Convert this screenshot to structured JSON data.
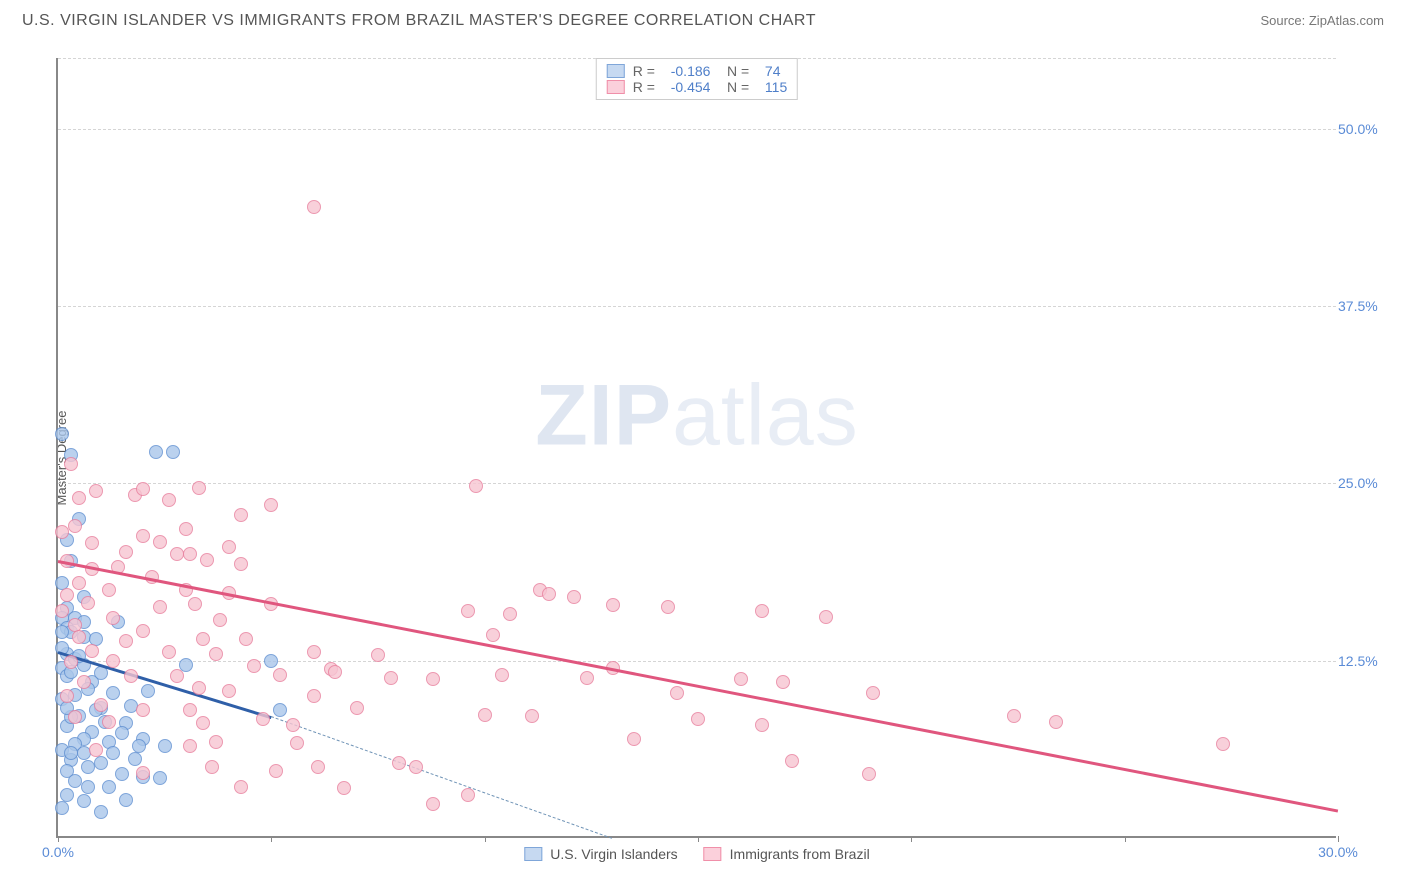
{
  "header": {
    "title": "U.S. VIRGIN ISLANDER VS IMMIGRANTS FROM BRAZIL MASTER'S DEGREE CORRELATION CHART",
    "source": "Source: ZipAtlas.com"
  },
  "watermark": {
    "prefix": "ZIP",
    "suffix": "atlas"
  },
  "chart": {
    "type": "scatter",
    "ylabel": "Master's Degree",
    "xlim": [
      0,
      30
    ],
    "ylim": [
      0,
      55
    ],
    "xtick_step": 5,
    "xtick_label_first": "0.0%",
    "xtick_label_last": "30.0%",
    "ytick_labels": [
      {
        "v": 12.5,
        "label": "12.5%"
      },
      {
        "v": 25.0,
        "label": "25.0%"
      },
      {
        "v": 37.5,
        "label": "37.5%"
      },
      {
        "v": 50.0,
        "label": "50.0%"
      }
    ],
    "grid_color": "#d5d5d5",
    "axis_color": "#888888",
    "background_color": "#ffffff",
    "tick_label_color": "#5a8bd6"
  },
  "legend_top": {
    "rows": [
      {
        "swatch_fill": "#c6d9f1",
        "swatch_stroke": "#7fa6d9",
        "r_label": "R =",
        "r": "-0.186",
        "n_label": "N =",
        "n": "74"
      },
      {
        "swatch_fill": "#fbd0db",
        "swatch_stroke": "#f08fa9",
        "r_label": "R =",
        "r": "-0.454",
        "n_label": "N =",
        "n": "115"
      }
    ],
    "text_color": "#666666",
    "value_color": "#4f7fc9"
  },
  "legend_bottom": {
    "items": [
      {
        "swatch_fill": "#c6d9f1",
        "swatch_stroke": "#7fa6d9",
        "label": "U.S. Virgin Islanders"
      },
      {
        "swatch_fill": "#fbd0db",
        "swatch_stroke": "#f08fa9",
        "label": "Immigrants from Brazil"
      }
    ]
  },
  "series": [
    {
      "name": "usvi",
      "color_fill": "#a9c6ea",
      "color_stroke": "#5f8fd1",
      "trend_color": "#2f5fa8",
      "trend_dash_color": "#6f93b6",
      "trend": {
        "x1": 0,
        "y1": 13.2,
        "x2": 5,
        "y2": 8.6,
        "x2_dash": 13,
        "y2_dash": 0
      },
      "points": [
        [
          0.1,
          28.5
        ],
        [
          0.3,
          27.0
        ],
        [
          2.3,
          27.2
        ],
        [
          2.7,
          27.2
        ],
        [
          0.5,
          22.5
        ],
        [
          0.2,
          21.0
        ],
        [
          0.3,
          19.5
        ],
        [
          0.1,
          18.0
        ],
        [
          0.6,
          17.0
        ],
        [
          0.2,
          16.2
        ],
        [
          0.1,
          15.5
        ],
        [
          0.4,
          15.5
        ],
        [
          0.6,
          15.2
        ],
        [
          0.2,
          14.8
        ],
        [
          0.3,
          14.5
        ],
        [
          0.1,
          14.5
        ],
        [
          0.6,
          14.2
        ],
        [
          0.2,
          13.0
        ],
        [
          0.1,
          13.4
        ],
        [
          0.4,
          12.6
        ],
        [
          0.1,
          12.0
        ],
        [
          0.6,
          12.2
        ],
        [
          0.8,
          11.0
        ],
        [
          0.2,
          11.4
        ],
        [
          0.7,
          10.5
        ],
        [
          1.3,
          10.2
        ],
        [
          1.0,
          11.6
        ],
        [
          0.4,
          10.1
        ],
        [
          1.0,
          9.2
        ],
        [
          0.1,
          9.8
        ],
        [
          1.7,
          9.3
        ],
        [
          0.5,
          8.6
        ],
        [
          0.9,
          9.0
        ],
        [
          0.2,
          7.9
        ],
        [
          1.1,
          8.2
        ],
        [
          1.6,
          8.1
        ],
        [
          0.3,
          8.5
        ],
        [
          0.8,
          7.5
        ],
        [
          1.5,
          7.4
        ],
        [
          0.6,
          7.0
        ],
        [
          2.0,
          7.0
        ],
        [
          0.4,
          6.6
        ],
        [
          2.5,
          6.5
        ],
        [
          1.2,
          6.8
        ],
        [
          0.6,
          6.0
        ],
        [
          0.1,
          6.2
        ],
        [
          1.3,
          6.0
        ],
        [
          0.3,
          5.5
        ],
        [
          1.8,
          5.6
        ],
        [
          0.7,
          5.0
        ],
        [
          1.0,
          5.3
        ],
        [
          0.2,
          4.7
        ],
        [
          1.5,
          4.5
        ],
        [
          2.0,
          4.3
        ],
        [
          0.4,
          4.0
        ],
        [
          2.4,
          4.2
        ],
        [
          0.7,
          3.6
        ],
        [
          1.2,
          3.6
        ],
        [
          0.2,
          3.0
        ],
        [
          0.6,
          2.6
        ],
        [
          1.6,
          2.7
        ],
        [
          0.1,
          2.1
        ],
        [
          1.0,
          1.8
        ],
        [
          0.3,
          6.0
        ],
        [
          3.0,
          12.2
        ],
        [
          5.0,
          12.5
        ],
        [
          5.2,
          9.0
        ],
        [
          1.4,
          15.2
        ],
        [
          0.9,
          14.0
        ],
        [
          2.1,
          10.4
        ],
        [
          0.3,
          11.7
        ],
        [
          1.9,
          6.5
        ],
        [
          0.5,
          12.8
        ],
        [
          0.2,
          9.2
        ]
      ]
    },
    {
      "name": "brazil",
      "color_fill": "#f7c5d2",
      "color_stroke": "#e87f9d",
      "trend_color": "#e0567e",
      "trend": {
        "x1": 0,
        "y1": 19.6,
        "x2": 30,
        "y2": 2.0
      },
      "points": [
        [
          6.0,
          44.5
        ],
        [
          0.3,
          26.4
        ],
        [
          0.9,
          24.5
        ],
        [
          0.5,
          24.0
        ],
        [
          1.8,
          24.2
        ],
        [
          2.0,
          24.6
        ],
        [
          2.6,
          23.8
        ],
        [
          3.3,
          24.7
        ],
        [
          5.0,
          23.5
        ],
        [
          4.3,
          22.8
        ],
        [
          9.8,
          24.8
        ],
        [
          0.1,
          21.6
        ],
        [
          0.4,
          22.0
        ],
        [
          2.0,
          21.3
        ],
        [
          3.0,
          21.8
        ],
        [
          0.8,
          20.8
        ],
        [
          1.6,
          20.2
        ],
        [
          2.4,
          20.9
        ],
        [
          2.8,
          20.0
        ],
        [
          4.0,
          20.5
        ],
        [
          3.1,
          20.0
        ],
        [
          0.2,
          19.5
        ],
        [
          0.8,
          19.0
        ],
        [
          1.4,
          19.1
        ],
        [
          3.5,
          19.6
        ],
        [
          4.3,
          19.3
        ],
        [
          2.2,
          18.4
        ],
        [
          0.5,
          18.0
        ],
        [
          1.2,
          17.5
        ],
        [
          3.0,
          17.5
        ],
        [
          4.0,
          17.3
        ],
        [
          0.2,
          17.1
        ],
        [
          0.7,
          16.6
        ],
        [
          2.4,
          16.3
        ],
        [
          3.2,
          16.5
        ],
        [
          5.0,
          16.5
        ],
        [
          0.1,
          16.0
        ],
        [
          1.3,
          15.5
        ],
        [
          3.8,
          15.4
        ],
        [
          0.4,
          15.0
        ],
        [
          2.0,
          14.6
        ],
        [
          0.5,
          14.2
        ],
        [
          1.6,
          13.9
        ],
        [
          3.4,
          14.0
        ],
        [
          4.4,
          14.0
        ],
        [
          0.8,
          13.2
        ],
        [
          3.7,
          13.0
        ],
        [
          6.0,
          13.1
        ],
        [
          7.5,
          12.9
        ],
        [
          0.3,
          12.4
        ],
        [
          1.3,
          12.5
        ],
        [
          4.6,
          12.1
        ],
        [
          8.8,
          11.2
        ],
        [
          7.8,
          11.3
        ],
        [
          0.6,
          11.0
        ],
        [
          1.7,
          11.4
        ],
        [
          5.2,
          11.5
        ],
        [
          6.4,
          11.9
        ],
        [
          10.4,
          11.5
        ],
        [
          3.3,
          10.6
        ],
        [
          4.0,
          10.4
        ],
        [
          6.0,
          10.0
        ],
        [
          10.6,
          15.8
        ],
        [
          11.3,
          17.5
        ],
        [
          11.5,
          17.2
        ],
        [
          12.1,
          17.0
        ],
        [
          9.6,
          16.0
        ],
        [
          10.2,
          14.3
        ],
        [
          13.0,
          16.4
        ],
        [
          14.3,
          16.3
        ],
        [
          16.5,
          16.0
        ],
        [
          10.0,
          8.7
        ],
        [
          11.1,
          8.6
        ],
        [
          12.4,
          11.3
        ],
        [
          8.0,
          5.3
        ],
        [
          8.4,
          5.0
        ],
        [
          8.8,
          2.4
        ],
        [
          9.6,
          3.0
        ],
        [
          7.0,
          9.2
        ],
        [
          5.5,
          8.0
        ],
        [
          3.6,
          5.0
        ],
        [
          4.3,
          3.6
        ],
        [
          5.1,
          4.7
        ],
        [
          6.1,
          5.0
        ],
        [
          6.7,
          3.5
        ],
        [
          1.0,
          9.4
        ],
        [
          2.0,
          9.0
        ],
        [
          3.4,
          8.1
        ],
        [
          13.0,
          12.0
        ],
        [
          14.5,
          10.2
        ],
        [
          16.0,
          11.2
        ],
        [
          16.5,
          8.0
        ],
        [
          17.2,
          5.4
        ],
        [
          18.0,
          15.6
        ],
        [
          19.0,
          4.5
        ],
        [
          19.1,
          10.2
        ],
        [
          22.4,
          8.6
        ],
        [
          23.4,
          8.2
        ],
        [
          27.3,
          6.6
        ],
        [
          17.0,
          11.0
        ],
        [
          15.0,
          8.4
        ],
        [
          13.5,
          7.0
        ],
        [
          3.1,
          6.5
        ],
        [
          6.5,
          11.7
        ],
        [
          0.2,
          10.0
        ],
        [
          2.6,
          13.1
        ],
        [
          2.8,
          11.4
        ],
        [
          1.2,
          8.2
        ],
        [
          0.9,
          6.2
        ],
        [
          4.8,
          8.4
        ],
        [
          3.1,
          9.0
        ],
        [
          5.6,
          6.7
        ],
        [
          2.0,
          4.6
        ],
        [
          3.7,
          6.8
        ],
        [
          0.4,
          8.5
        ]
      ]
    }
  ]
}
